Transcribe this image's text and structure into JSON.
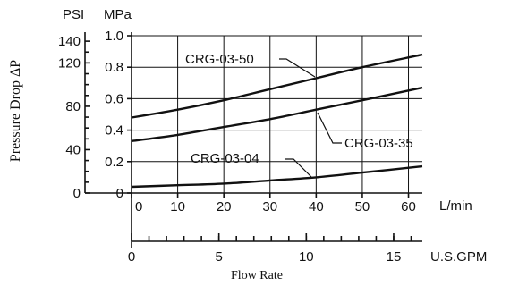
{
  "chart_data": {
    "type": "line",
    "title": "",
    "xlabel": "Flow Rate",
    "ylabel": "Pressure Drop ΔP",
    "x_axis_lmin": {
      "unit": "L/min",
      "ticks": [
        "0",
        "10",
        "20",
        "30",
        "40",
        "50",
        "60"
      ],
      "range": [
        0,
        63
      ]
    },
    "x_axis_gpm": {
      "unit": "U.S.GPM",
      "ticks": [
        "0",
        "5",
        "10",
        "15"
      ],
      "range": [
        0,
        16.64
      ]
    },
    "y_axis_mpa": {
      "unit": "MPa",
      "ticks": [
        "0",
        "0.2",
        "0.4",
        "0.6",
        "0.8",
        "1.0"
      ],
      "range": [
        0,
        1.0
      ]
    },
    "y_axis_psi": {
      "unit": "PSI",
      "ticks": [
        "0",
        "40",
        "80",
        "120",
        "140"
      ],
      "values": [
        0,
        40,
        80,
        120,
        140
      ]
    },
    "grid": true,
    "series": [
      {
        "name": "CRG-03-50",
        "x": [
          0,
          10,
          20,
          30,
          40,
          50,
          63
        ],
        "y": [
          0.48,
          0.53,
          0.59,
          0.66,
          0.73,
          0.8,
          0.88
        ]
      },
      {
        "name": "CRG-03-35",
        "x": [
          0,
          10,
          20,
          30,
          40,
          50,
          63
        ],
        "y": [
          0.33,
          0.37,
          0.42,
          0.47,
          0.53,
          0.59,
          0.67
        ]
      },
      {
        "name": "CRG-03-04",
        "x": [
          0,
          10,
          20,
          30,
          40,
          50,
          63
        ],
        "y": [
          0.04,
          0.05,
          0.06,
          0.08,
          0.1,
          0.13,
          0.17
        ]
      }
    ]
  }
}
